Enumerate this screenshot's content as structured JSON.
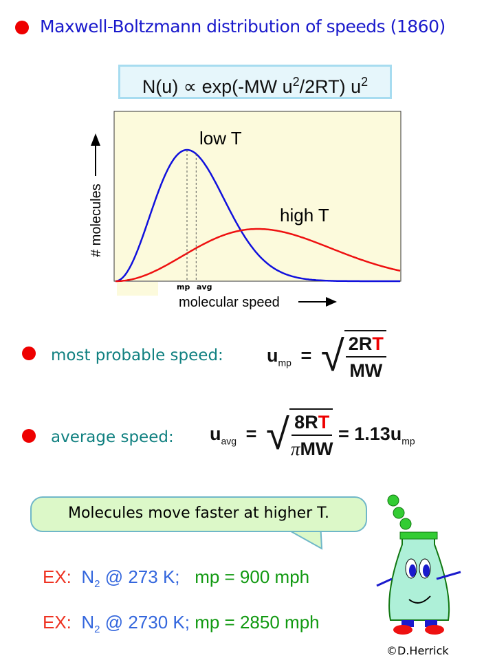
{
  "title": "Maxwell-Boltzmann distribution of speeds (1860)",
  "formula_box": {
    "lhs": "N(u) ∝ exp(-MW u",
    "sup1": "2",
    "mid": "/2RT) u",
    "sup2": "2"
  },
  "chart_data": {
    "type": "line",
    "xlabel": "molecular speed",
    "ylabel": "# molecules",
    "grid": false,
    "series": [
      {
        "name": "low T",
        "color": "#1010dd"
      },
      {
        "name": "high T",
        "color": "#ee1010"
      }
    ],
    "markers": [
      "mp",
      "avg"
    ],
    "background": "#fcfadc"
  },
  "mp": {
    "label": "most probable speed:",
    "u": "u",
    "sub": "mp",
    "num_a": "2R",
    "num_t": "T",
    "den": "MW"
  },
  "avg": {
    "label": "average speed:",
    "u": "u",
    "sub": "avg",
    "num_a": "8R",
    "num_t": "T",
    "den_pi": "π",
    "den": "MW",
    "result": "= 1.13u",
    "result_sub": "mp"
  },
  "bubble": "Molecules move faster at higher T.",
  "examples": [
    {
      "ex": "EX:",
      "species": "N",
      "sub": "2",
      "rest": " @ 273 K;",
      "mp": "mp = 900 mph"
    },
    {
      "ex": "EX:",
      "species": "N",
      "sub": "2",
      "rest": " @ 2730 K;",
      "mp": "mp = 2850 mph"
    }
  ],
  "credit": "©D.Herrick",
  "colors": {
    "bullet": "#ee0000",
    "title": "#1a1acc",
    "teal": "#108080",
    "ex_red": "#ee3322",
    "ex_blue": "#3366dd",
    "ex_green": "#119911"
  }
}
